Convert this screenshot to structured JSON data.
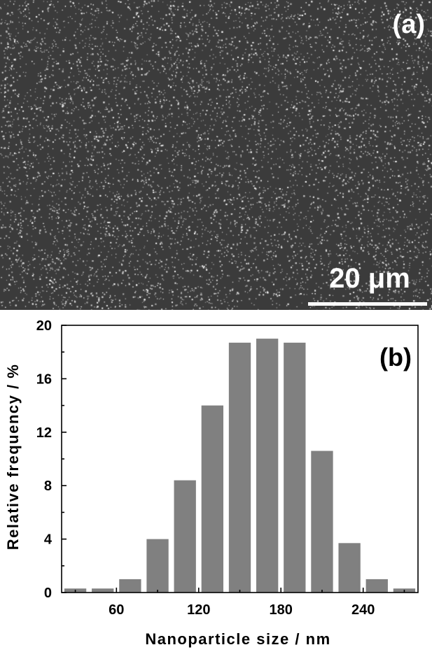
{
  "panel_a": {
    "label": "(a)",
    "scale_bar_label": "20 μm"
  },
  "chart_data": {
    "type": "bar",
    "title": "",
    "panel_label": "(b)",
    "xlabel": "Nanoparticle size / nm",
    "ylabel": "Relative frequency / %",
    "x": [
      30,
      50,
      70,
      90,
      110,
      130,
      150,
      170,
      190,
      210,
      230,
      250,
      270
    ],
    "values": [
      0.3,
      0.3,
      1.0,
      4.0,
      8.4,
      14.0,
      18.7,
      19.0,
      18.7,
      10.6,
      3.7,
      1.0,
      0.3
    ],
    "xlim": [
      20,
      280
    ],
    "ylim": [
      0,
      20
    ],
    "xticks": [
      60,
      120,
      180,
      240
    ],
    "yticks": [
      0,
      4,
      8,
      12,
      16,
      20
    ],
    "bar_color": "#808080",
    "grid": false
  }
}
